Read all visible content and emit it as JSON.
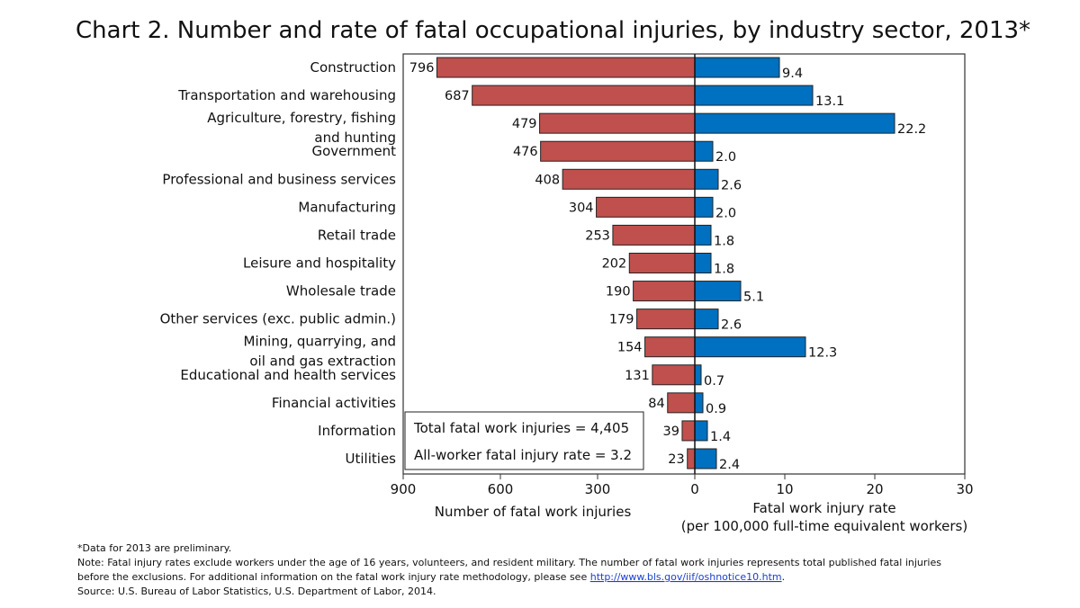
{
  "chart_data": {
    "type": "bar",
    "orientation": "horizontal",
    "layout": "back-to-back",
    "title": "Chart 2. Number and rate of fatal occupational injuries, by industry sector, 2013*",
    "categories": [
      [
        "Construction"
      ],
      [
        "Transportation and warehousing"
      ],
      [
        "Agriculture, forestry, fishing",
        "and hunting"
      ],
      [
        "Government"
      ],
      [
        "Professional and business services"
      ],
      [
        "Manufacturing"
      ],
      [
        "Retail trade"
      ],
      [
        "Leisure and hospitality"
      ],
      [
        "Wholesale trade"
      ],
      [
        "Other services (exc. public admin.)"
      ],
      [
        "Mining, quarrying, and",
        "oil and gas extraction"
      ],
      [
        "Educational and health services"
      ],
      [
        "Financial activities"
      ],
      [
        "Information"
      ],
      [
        "Utilities"
      ]
    ],
    "series": [
      {
        "key": "count",
        "values": [
          796,
          687,
          479,
          476,
          408,
          304,
          253,
          202,
          190,
          179,
          154,
          131,
          84,
          39,
          23
        ],
        "color": "#c0504d",
        "side": "left"
      },
      {
        "key": "rate",
        "values": [
          9.4,
          13.1,
          22.2,
          2.0,
          2.6,
          2.0,
          1.8,
          1.8,
          5.1,
          2.6,
          12.3,
          0.7,
          0.9,
          1.4,
          2.4
        ],
        "color": "#0070c0",
        "side": "right"
      }
    ],
    "left_axis": {
      "label": "Number of fatal work injuries",
      "range": [
        900,
        0
      ],
      "ticks": [
        "900",
        "600",
        "300",
        "0"
      ]
    },
    "right_axis": {
      "label": [
        "Fatal work injury rate",
        "(per 100,000 full-time equivalent workers)"
      ],
      "range": [
        0,
        30
      ],
      "ticks": [
        "10",
        "20",
        "30"
      ]
    },
    "annotation": [
      "Total fatal work injuries = 4,405",
      "All-worker fatal injury rate = 3.2"
    ],
    "grid": false,
    "legend": "none"
  },
  "footnotes": {
    "preliminary": "*Data for 2013 are preliminary.",
    "note_line1": "Note: Fatal injury rates exclude workers under the age of 16 years, volunteers, and resident military. The number of fatal work injuries represents total published fatal injuries",
    "note_line2": "before the exclusions. For additional information on the fatal work injury rate methodology, please see ",
    "link": "http://www.bls.gov/iif/oshnotice10.htm",
    "note_end": ".",
    "source": "Source: U.S. Bureau of Labor Statistics, U.S. Department of Labor, 2014."
  }
}
